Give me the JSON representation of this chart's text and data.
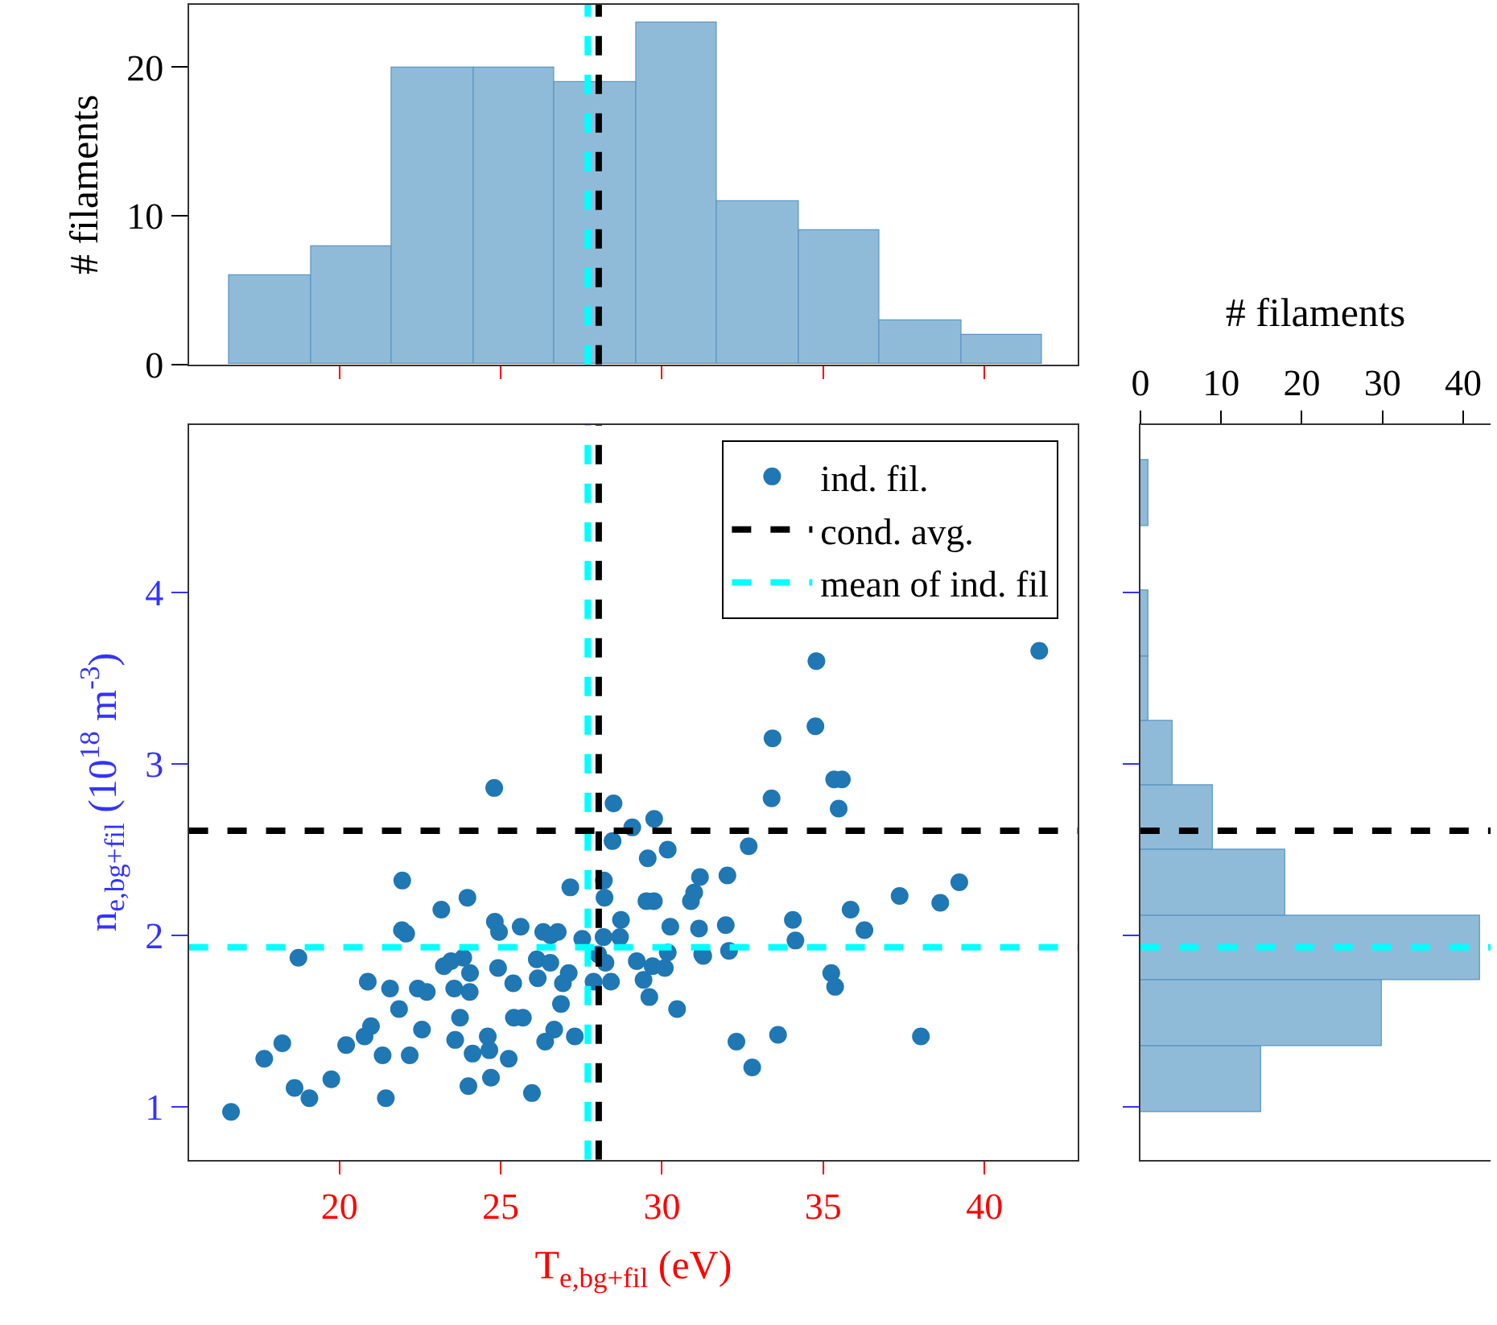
{
  "chart_data": [
    {
      "type": "histogram",
      "ylabel": "# filaments",
      "bins": [
        16.58,
        19.102,
        21.624,
        24.146,
        26.668,
        29.19,
        31.712,
        34.234,
        36.756,
        39.278,
        41.8
      ],
      "values": [
        6,
        8,
        20,
        20,
        19,
        23,
        11,
        9,
        3,
        2
      ],
      "color": "#8fbbd9",
      "xlim": [
        15.33,
        42.9
      ],
      "ylim": [
        0,
        24.2
      ],
      "xticks": [
        {
          "value": 20,
          "label": null
        },
        {
          "value": 25,
          "label": null
        },
        {
          "value": 30,
          "label": null
        },
        {
          "value": 35,
          "label": null
        },
        {
          "value": 40,
          "label": null
        }
      ],
      "yticks": [
        0,
        10,
        20
      ],
      "tick_labels": "y",
      "ref_lines": [
        {
          "axis": "x",
          "value": 28.04,
          "color": "#000000",
          "line_style": "dashed"
        },
        {
          "axis": "x",
          "value": 27.7,
          "color": "#00ffff",
          "line_style": "dashed"
        }
      ]
    },
    {
      "type": "scatter",
      "xlabel": "T$_{e,bg+fil}$ (eV)",
      "ylabel": "n$_{e,bg+fil}$ (10$^{18}$ m$^{-3}$)",
      "xlim": [
        15.33,
        42.9
      ],
      "ylim": [
        0.69,
        4.98
      ],
      "xticks": [
        20,
        25,
        30,
        35,
        40
      ],
      "yticks": [
        1,
        2,
        3,
        4
      ],
      "legend": "top right",
      "marker": "circle",
      "series": [
        {
          "name": "ind. fil.",
          "color": "#1f77b4",
          "x": [
            16.64,
            17.67,
            18.23,
            18.61,
            19.07,
            18.73,
            19.75,
            20.21,
            20.78,
            20.98,
            20.88,
            21.34,
            21.44,
            21.57,
            21.85,
            21.95,
            21.94,
            22.07,
            22.18,
            22.43,
            22.71,
            22.56,
            23.16,
            23.97,
            23.24,
            23.46,
            23.84,
            24.05,
            23.56,
            24.04,
            23.74,
            23.59,
            24.13,
            24.6,
            24.65,
            24.0,
            24.7,
            25.25,
            24.8,
            24.82,
            24.95,
            24.92,
            25.39,
            25.41,
            25.69,
            25.62,
            25.97,
            26.12,
            26.15,
            26.54,
            26.32,
            26.55,
            26.77,
            27.11,
            26.93,
            26.87,
            26.66,
            26.38,
            27.3,
            27.16,
            27.53,
            27.88,
            28.02,
            28.25,
            28.19,
            28.7,
            28.73,
            28.2,
            28.22,
            28.47,
            28.5,
            28.42,
            29.08,
            29.76,
            29.56,
            30.18,
            29.52,
            29.75,
            29.22,
            29.43,
            29.61,
            29.71,
            30.09,
            30.18,
            30.26,
            30.47,
            30.9,
            31.0,
            31.18,
            31.15,
            31.25,
            31.28,
            32.03,
            31.98,
            32.08,
            32.69,
            32.31,
            32.8,
            33.6,
            33.4,
            33.43,
            34.76,
            34.79,
            34.06,
            34.14,
            35.34,
            35.58,
            35.48,
            35.25,
            35.37,
            35.85,
            36.28,
            37.37,
            38.03,
            38.63,
            39.22,
            41.7
          ],
          "values": [
            0.97,
            1.28,
            1.37,
            1.11,
            1.05,
            1.87,
            1.16,
            1.36,
            1.41,
            1.47,
            1.73,
            1.3,
            1.05,
            1.69,
            1.57,
            2.32,
            2.03,
            2.01,
            1.3,
            1.69,
            1.67,
            1.45,
            2.15,
            2.22,
            1.82,
            1.85,
            1.87,
            1.78,
            1.69,
            1.67,
            1.52,
            1.39,
            1.31,
            1.41,
            1.33,
            1.12,
            1.17,
            1.28,
            2.86,
            2.08,
            2.02,
            1.81,
            1.72,
            1.52,
            1.52,
            2.05,
            1.08,
            1.86,
            1.75,
            1.84,
            2.02,
            2.0,
            2.02,
            1.78,
            1.72,
            1.6,
            1.45,
            1.38,
            1.41,
            2.28,
            1.98,
            1.73,
            1.89,
            1.84,
            1.99,
            1.99,
            2.09,
            2.32,
            2.22,
            2.55,
            2.77,
            1.73,
            2.63,
            2.68,
            2.45,
            2.5,
            2.2,
            2.2,
            1.85,
            1.74,
            1.64,
            1.82,
            1.81,
            1.9,
            2.05,
            1.57,
            2.2,
            2.25,
            2.34,
            2.04,
            1.89,
            1.88,
            2.35,
            2.06,
            1.91,
            2.52,
            1.38,
            1.23,
            1.42,
            2.8,
            3.15,
            3.22,
            3.6,
            2.09,
            1.97,
            2.91,
            2.91,
            2.74,
            1.78,
            1.7,
            2.15,
            2.03,
            2.23,
            1.41,
            2.19,
            2.31,
            3.66
          ]
        }
      ],
      "ref_lines": [
        {
          "axis": "x",
          "value": 28.04,
          "color": "#000000",
          "line_style": "dashed"
        },
        {
          "axis": "x",
          "value": 27.7,
          "color": "#00ffff",
          "line_style": "dashed"
        },
        {
          "axis": "y",
          "value": 2.61,
          "label": "cond. avg.",
          "color": "#000000",
          "line_style": "dashed"
        },
        {
          "axis": "y",
          "value": 1.93,
          "label": "mean of ind. fil",
          "color": "#00ffff",
          "line_style": "dashed"
        }
      ]
    },
    {
      "type": "histogram",
      "orientation": "horizontal",
      "xlabel": "# filaments",
      "bins": [
        0.969,
        1.352,
        1.735,
        2.119,
        2.496,
        2.876,
        3.254,
        3.63,
        4.014,
        4.391,
        4.774
      ],
      "values": [
        15,
        30,
        42,
        18,
        9,
        4,
        1,
        1,
        0,
        1
      ],
      "color": "#8fbbd9",
      "xlim": [
        0,
        43.4
      ],
      "ylim": [
        0.69,
        4.98
      ],
      "xticks": [
        0,
        10,
        20,
        30,
        40
      ],
      "yticks": [
        {
          "value": 1,
          "label": null
        },
        {
          "value": 2,
          "label": null
        },
        {
          "value": 3,
          "label": null
        },
        {
          "value": 4,
          "label": null
        }
      ],
      "tick_labels": "x",
      "ref_lines": [
        {
          "axis": "y",
          "value": 2.61,
          "color": "#000000",
          "line_style": "dashed"
        },
        {
          "axis": "y",
          "value": 1.93,
          "color": "#00ffff",
          "line_style": "dashed"
        }
      ]
    }
  ]
}
